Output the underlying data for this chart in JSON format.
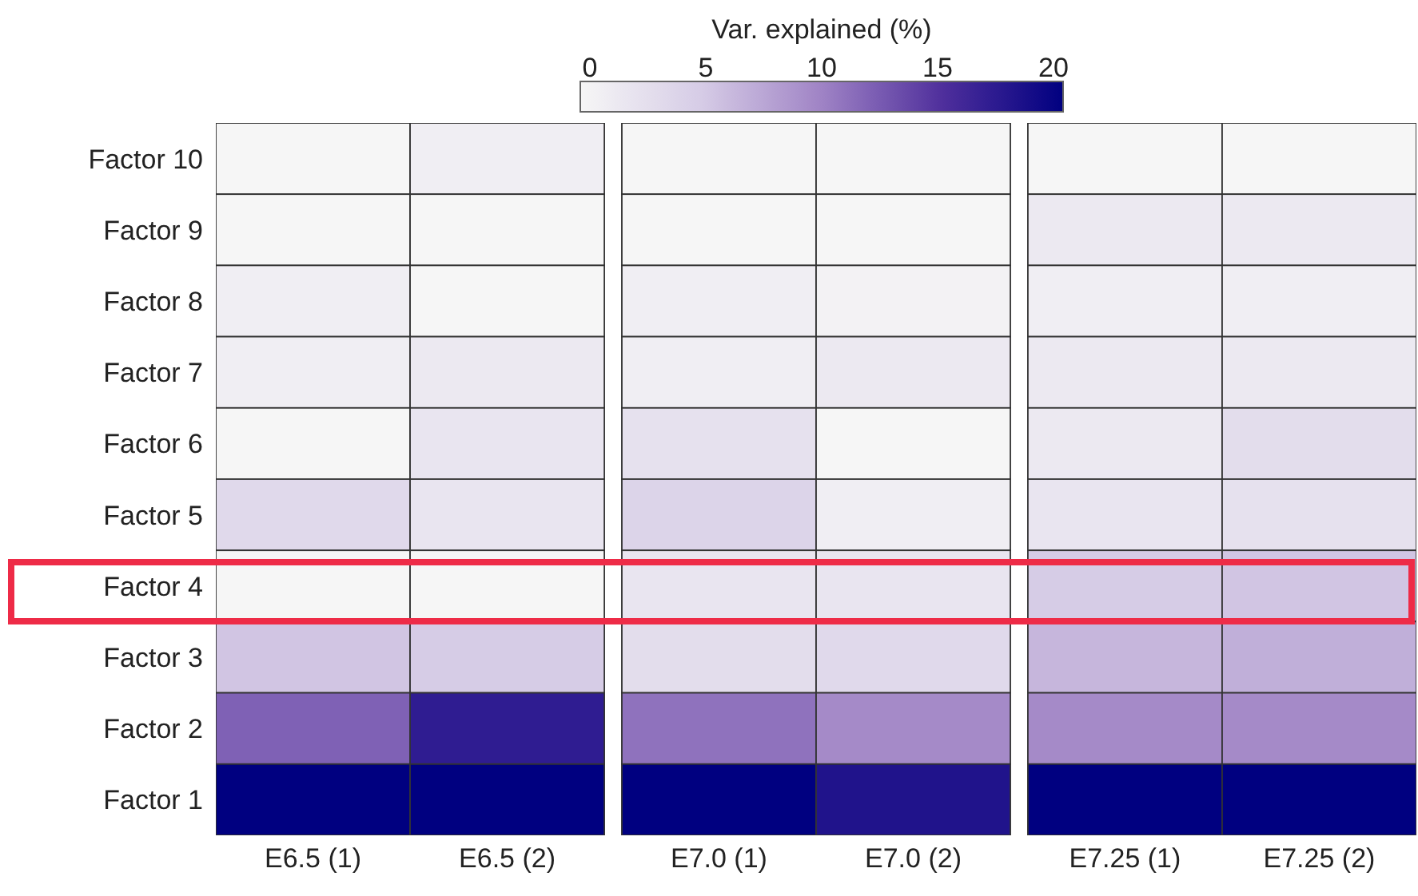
{
  "chart_data": {
    "type": "heatmap",
    "categories": [
      "E6.5 (1)",
      "E6.5 (2)",
      "E7.0 (1)",
      "E7.0 (2)",
      "E7.25 (1)",
      "E7.25 (2)"
    ],
    "y_categories": [
      "Factor 10",
      "Factor 9",
      "Factor 8",
      "Factor 7",
      "Factor 6",
      "Factor 5",
      "Factor 4",
      "Factor 3",
      "Factor 2",
      "Factor 1"
    ],
    "cells": [
      [
        0,
        1,
        0,
        0,
        0,
        0
      ],
      [
        0,
        0,
        0,
        0,
        1.5,
        1.5
      ],
      [
        1,
        0,
        1,
        0.5,
        1,
        1
      ],
      [
        1,
        1.5,
        1,
        1.5,
        1.5,
        1.5
      ],
      [
        0,
        2,
        2.5,
        0,
        1.5,
        3
      ],
      [
        3.5,
        2,
        4,
        1,
        2,
        2.5
      ],
      [
        0,
        0,
        2,
        2,
        5,
        5.5
      ],
      [
        5.5,
        5,
        3,
        3.5,
        6.5,
        7
      ],
      [
        12,
        17,
        11,
        9.5,
        9.5,
        9.5
      ],
      [
        20,
        20,
        20,
        18,
        20,
        20
      ]
    ],
    "clabel": "Var. explained (%)",
    "clim": [
      0,
      20
    ],
    "cticks": [
      0,
      5,
      10,
      15,
      20
    ]
  }
}
